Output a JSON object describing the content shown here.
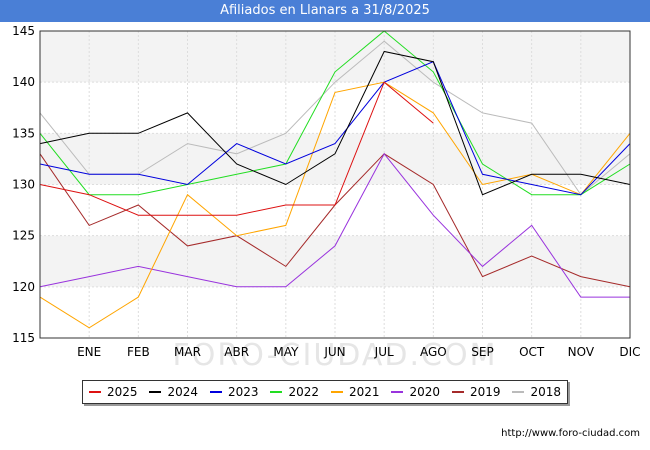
{
  "header": {
    "title": "Afiliados en Llanars a 31/8/2025"
  },
  "watermark": "FORO-CIUDAD.COM",
  "footer": {
    "url": "http://www.foro-ciudad.com"
  },
  "chart_data": {
    "type": "line",
    "title": "Afiliados en Llanars a 31/8/2025",
    "xlabel": "",
    "ylabel": "",
    "categories": [
      "DIC0",
      "ENE",
      "FEB",
      "MAR",
      "ABR",
      "MAY",
      "JUN",
      "JUL",
      "AGO",
      "SEP",
      "OCT",
      "NOV",
      "DIC"
    ],
    "category_labels": [
      "",
      "ENE",
      "FEB",
      "MAR",
      "ABR",
      "MAY",
      "JUN",
      "JUL",
      "AGO",
      "SEP",
      "OCT",
      "NOV",
      "DIC"
    ],
    "ylim": [
      115,
      145
    ],
    "yticks": [
      115,
      120,
      125,
      130,
      135,
      140,
      145
    ],
    "grid": true,
    "legend_position": "bottom",
    "series": [
      {
        "name": "2025",
        "color": "#dd1111",
        "values": [
          130,
          129,
          127,
          127,
          127,
          128,
          128,
          140,
          136,
          null,
          null,
          null,
          null
        ]
      },
      {
        "name": "2024",
        "color": "#000000",
        "values": [
          134,
          135,
          135,
          137,
          132,
          130,
          133,
          143,
          142,
          129,
          131,
          131,
          130
        ]
      },
      {
        "name": "2023",
        "color": "#0000dd",
        "values": [
          132,
          131,
          131,
          130,
          134,
          132,
          134,
          140,
          142,
          131,
          130,
          129,
          134
        ]
      },
      {
        "name": "2022",
        "color": "#22dd22",
        "values": [
          135,
          129,
          129,
          130,
          131,
          132,
          141,
          145,
          141,
          132,
          129,
          129,
          132
        ]
      },
      {
        "name": "2021",
        "color": "#ffa500",
        "values": [
          119,
          116,
          119,
          129,
          125,
          126,
          139,
          140,
          137,
          130,
          131,
          129,
          135
        ]
      },
      {
        "name": "2020",
        "color": "#9933dd",
        "values": [
          120,
          121,
          122,
          121,
          120,
          120,
          124,
          133,
          127,
          122,
          126,
          119,
          119
        ]
      },
      {
        "name": "2019",
        "color": "#a52a2a",
        "values": [
          133,
          126,
          128,
          124,
          125,
          122,
          128,
          133,
          130,
          121,
          123,
          121,
          120
        ]
      },
      {
        "name": "2018",
        "color": "#bbbbbb",
        "values": [
          137,
          131,
          131,
          134,
          133,
          135,
          140,
          144,
          140,
          137,
          136,
          129,
          133
        ]
      }
    ]
  }
}
